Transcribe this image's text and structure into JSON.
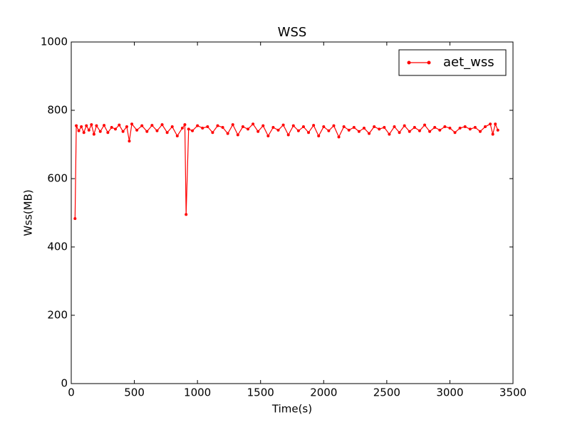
{
  "chart_data": {
    "type": "line",
    "title": "WSS",
    "x_label": "Time(s)",
    "y_label": "Wss(MB)",
    "xlim": [
      0,
      3500
    ],
    "xticks": [
      0,
      500,
      1000,
      1500,
      2000,
      2500,
      3000,
      3500
    ],
    "ylim": [
      0,
      1000
    ],
    "yticks": [
      0,
      200,
      400,
      600,
      800,
      1000
    ],
    "legend_position": "upper right",
    "grid": false,
    "x": [
      30,
      40,
      60,
      80,
      100,
      120,
      140,
      160,
      180,
      200,
      230,
      260,
      290,
      320,
      350,
      380,
      410,
      440,
      460,
      480,
      520,
      560,
      600,
      640,
      680,
      720,
      760,
      800,
      840,
      880,
      900,
      910,
      930,
      960,
      1000,
      1040,
      1080,
      1120,
      1160,
      1200,
      1240,
      1280,
      1320,
      1360,
      1400,
      1440,
      1480,
      1520,
      1560,
      1600,
      1640,
      1680,
      1720,
      1760,
      1800,
      1840,
      1880,
      1920,
      1960,
      2000,
      2040,
      2080,
      2120,
      2160,
      2200,
      2240,
      2280,
      2320,
      2360,
      2400,
      2440,
      2480,
      2520,
      2560,
      2600,
      2640,
      2680,
      2720,
      2760,
      2800,
      2840,
      2880,
      2920,
      2960,
      3000,
      3040,
      3080,
      3120,
      3160,
      3200,
      3240,
      3280,
      3320,
      3340,
      3360,
      3380
    ],
    "series": [
      {
        "name": "aet_wss",
        "color": "#ff0000",
        "values": [
          483,
          755,
          740,
          752,
          735,
          755,
          742,
          758,
          730,
          755,
          738,
          756,
          735,
          750,
          745,
          757,
          738,
          752,
          710,
          760,
          742,
          755,
          738,
          756,
          740,
          758,
          735,
          752,
          725,
          748,
          758,
          495,
          745,
          740,
          755,
          748,
          752,
          735,
          755,
          750,
          732,
          758,
          728,
          752,
          745,
          760,
          738,
          755,
          725,
          750,
          742,
          757,
          728,
          755,
          740,
          752,
          735,
          756,
          725,
          752,
          740,
          755,
          722,
          752,
          742,
          750,
          738,
          748,
          732,
          752,
          745,
          750,
          730,
          752,
          735,
          755,
          738,
          750,
          740,
          757,
          738,
          750,
          742,
          752,
          748,
          735,
          748,
          752,
          745,
          750,
          738,
          752,
          760,
          730,
          760,
          742
        ]
      }
    ]
  }
}
